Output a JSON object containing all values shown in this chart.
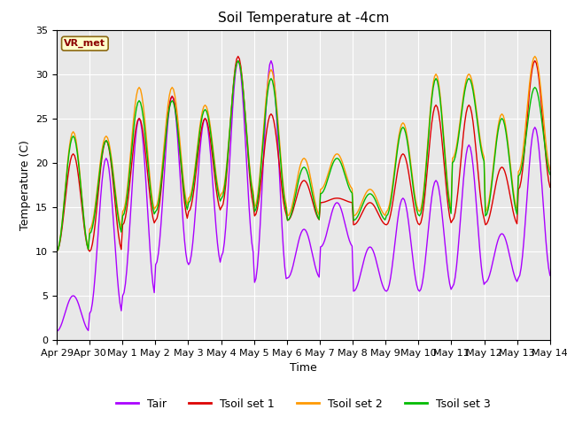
{
  "title": "Soil Temperature at -4cm",
  "xlabel": "Time",
  "ylabel": "Temperature (C)",
  "ylim": [
    0,
    35
  ],
  "xlim": [
    0,
    15
  ],
  "xtick_labels": [
    "Apr 29",
    "Apr 30",
    "May 1",
    "May 2",
    "May 3",
    "May 4",
    "May 5",
    "May 6",
    "May 7",
    "May 8",
    "May 9",
    "May 10",
    "May 11",
    "May 12",
    "May 13",
    "May 14"
  ],
  "xtick_positions": [
    0,
    1,
    2,
    3,
    4,
    5,
    6,
    7,
    8,
    9,
    10,
    11,
    12,
    13,
    14,
    15
  ],
  "ytick_positions": [
    0,
    5,
    10,
    15,
    20,
    25,
    30,
    35
  ],
  "label_box_text": "VR_met",
  "line_colors": {
    "Tair": "#aa00ff",
    "Tsoil1": "#dd0000",
    "Tsoil2": "#ff9900",
    "Tsoil3": "#00bb00"
  },
  "legend_labels": [
    "Tair",
    "Tsoil set 1",
    "Tsoil set 2",
    "Tsoil set 3"
  ],
  "bg_color": "#e8e8e8",
  "title_fontsize": 11,
  "axis_fontsize": 9,
  "tick_fontsize": 8
}
